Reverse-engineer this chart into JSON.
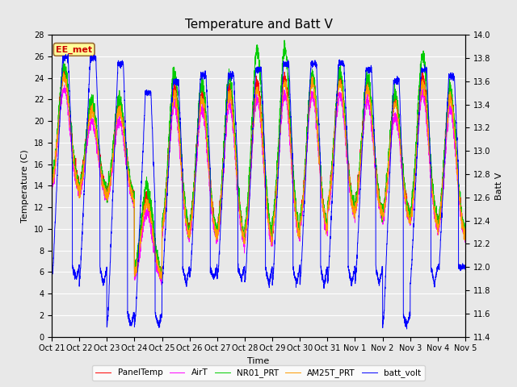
{
  "title": "Temperature and Batt V",
  "ylabel_left": "Temperature (C)",
  "ylabel_right": "Batt V",
  "xlabel": "Time",
  "legend_label": "EE_met",
  "series_labels": [
    "PanelTemp",
    "AirT",
    "NR01_PRT",
    "AM25T_PRT",
    "batt_volt"
  ],
  "series_colors": [
    "#ff0000",
    "#ff00ff",
    "#00cc00",
    "#ff9900",
    "#0000ff"
  ],
  "ylim_left": [
    0,
    28
  ],
  "ylim_right": [
    11.4,
    14.0
  ],
  "yticks_left": [
    0,
    2,
    4,
    6,
    8,
    10,
    12,
    14,
    16,
    18,
    20,
    22,
    24,
    26,
    28
  ],
  "yticks_right": [
    11.4,
    11.6,
    11.8,
    12.0,
    12.2,
    12.4,
    12.6,
    12.8,
    13.0,
    13.2,
    13.4,
    13.6,
    13.8,
    14.0
  ],
  "background_color": "#e8e8e8",
  "plot_bg_color": "#e8e8e8",
  "grid_color": "#ffffff",
  "title_fontsize": 11,
  "axis_fontsize": 8,
  "tick_fontsize": 7,
  "legend_box_color": "#ffff99",
  "legend_box_edgecolor": "#996633",
  "legend_text_color": "#cc0000",
  "days": 15,
  "xtick_labels": [
    "Oct 21",
    "Oct 22",
    "Oct 23",
    "Oct 24",
    "Oct 25",
    "Oct 26",
    "Oct 27",
    "Oct 28",
    "Oct 29",
    "Oct 30",
    "Oct 31",
    "Nov 1",
    "Nov 2",
    "Nov 3",
    "Nov 4",
    "Nov 5"
  ],
  "linewidth": 0.7,
  "day_peaks_panel": [
    24.5,
    21.5,
    21.5,
    13.0,
    23.0,
    22.5,
    23.0,
    23.5,
    24.0,
    24.0,
    24.0,
    23.5,
    22.0,
    24.0,
    22.5
  ],
  "night_lows_panel": [
    13.5,
    13.0,
    12.5,
    5.5,
    9.0,
    9.0,
    8.5,
    8.5,
    9.0,
    9.5,
    11.0,
    11.0,
    10.5,
    10.0,
    9.0
  ],
  "day_peaks_nr01": [
    25.0,
    22.0,
    22.0,
    14.0,
    24.5,
    23.5,
    24.0,
    26.5,
    26.5,
    24.5,
    24.5,
    24.0,
    22.5,
    26.0,
    23.0
  ],
  "batt_day_high": [
    13.8,
    13.8,
    13.75,
    13.5,
    13.6,
    13.65,
    13.65,
    13.7,
    13.75,
    13.75,
    13.75,
    13.7,
    13.6,
    13.7,
    13.65
  ],
  "batt_night_low": [
    12.0,
    12.0,
    11.6,
    11.6,
    12.0,
    12.0,
    12.0,
    12.0,
    12.0,
    12.0,
    12.0,
    12.0,
    11.6,
    12.0,
    12.0
  ],
  "batt_deep_dip": [
    11.9,
    11.85,
    11.5,
    11.5,
    11.85,
    11.9,
    11.9,
    11.85,
    11.85,
    11.85,
    11.85,
    11.85,
    11.5,
    11.85,
    12.0
  ]
}
